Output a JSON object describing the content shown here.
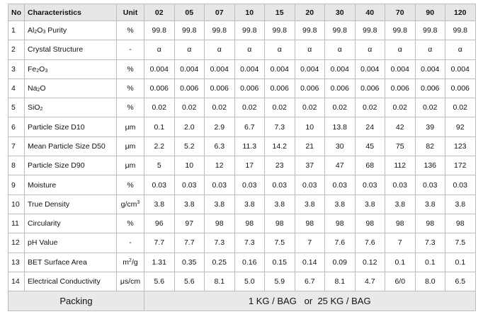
{
  "table": {
    "headers": {
      "no": "No",
      "characteristics": "Characteristics",
      "unit": "Unit",
      "grades": [
        "02",
        "05",
        "07",
        "10",
        "15",
        "20",
        "30",
        "40",
        "70",
        "90",
        "120"
      ]
    },
    "rows": [
      {
        "no": "1",
        "name_main": "Al",
        "name_sub1": "2",
        "name_mid": "O",
        "name_sub2": "3",
        "name_tail": " Purity",
        "unit": "%",
        "values": [
          "99.8",
          "99.8",
          "99.8",
          "99.8",
          "99.8",
          "99.8",
          "99.8",
          "99.8",
          "99.8",
          "99.8",
          "99.8"
        ]
      },
      {
        "no": "2",
        "name": "Crystal Structure",
        "unit": "-",
        "values": [
          "α",
          "α",
          "α",
          "α",
          "α",
          "α",
          "α",
          "α",
          "α",
          "α",
          "α"
        ]
      },
      {
        "no": "3",
        "name_main": "Fe",
        "name_sub1": "2",
        "name_mid": "O",
        "name_sub2": "3",
        "name_tail": "",
        "unit": "%",
        "values": [
          "0.004",
          "0.004",
          "0.004",
          "0.004",
          "0.004",
          "0.004",
          "0.004",
          "0.004",
          "0.004",
          "0.004",
          "0.004"
        ]
      },
      {
        "no": "4",
        "name_main": "Na",
        "name_sub1": "2",
        "name_mid": "O",
        "name_sub2": "",
        "name_tail": "",
        "unit": "%",
        "values": [
          "0.006",
          "0.006",
          "0.006",
          "0.006",
          "0.006",
          "0.006",
          "0.006",
          "0.006",
          "0.006",
          "0.006",
          "0.006"
        ]
      },
      {
        "no": "5",
        "name_main": "SiO",
        "name_sub1": "2",
        "name_mid": "",
        "name_sub2": "",
        "name_tail": "",
        "unit": "%",
        "values": [
          "0.02",
          "0.02",
          "0.02",
          "0.02",
          "0.02",
          "0.02",
          "0.02",
          "0.02",
          "0.02",
          "0.02",
          "0.02"
        ]
      },
      {
        "no": "6",
        "name": "Particle Size D10",
        "unit": "μm",
        "values": [
          "0.1",
          "2.0",
          "2.9",
          "6.7",
          "7.3",
          "10",
          "13.8",
          "24",
          "42",
          "39",
          "92"
        ]
      },
      {
        "no": "7",
        "name": "Mean Particle Size D50",
        "unit": "μm",
        "values": [
          "2.2",
          "5.2",
          "6.3",
          "11.3",
          "14.2",
          "21",
          "30",
          "45",
          "75",
          "82",
          "123"
        ]
      },
      {
        "no": "8",
        "name": "Particle Size D90",
        "unit": "μm",
        "values": [
          "5",
          "10",
          "12",
          "17",
          "23",
          "37",
          "47",
          "68",
          "112",
          "136",
          "172"
        ]
      },
      {
        "no": "9",
        "name": "Moisture",
        "unit": "%",
        "values": [
          "0.03",
          "0.03",
          "0.03",
          "0.03",
          "0.03",
          "0.03",
          "0.03",
          "0.03",
          "0.03",
          "0.03",
          "0.03"
        ]
      },
      {
        "no": "10",
        "name": "True Density",
        "unit_main": "g/cm",
        "unit_sup": "3",
        "values": [
          "3.8",
          "3.8",
          "3.8",
          "3.8",
          "3.8",
          "3.8",
          "3.8",
          "3.8",
          "3.8",
          "3.8",
          "3.8"
        ]
      },
      {
        "no": "11",
        "name": "Circularity",
        "unit": "%",
        "values": [
          "96",
          "97",
          "98",
          "98",
          "98",
          "98",
          "98",
          "98",
          "98",
          "98",
          "98"
        ]
      },
      {
        "no": "12",
        "name": "pH Value",
        "unit": "-",
        "values": [
          "7.7",
          "7.7",
          "7.3",
          "7.3",
          "7.5",
          "7",
          "7.6",
          "7.6",
          "7",
          "7.3",
          "7.5"
        ]
      },
      {
        "no": "13",
        "name": "BET Surface Area",
        "unit_main": "m",
        "unit_sup": "2",
        "unit_tail": "/g",
        "values": [
          "1.31",
          "0.35",
          "0.25",
          "0.16",
          "0.15",
          "0.14",
          "0.09",
          "0.12",
          "0.1",
          "0.1",
          "0.1"
        ]
      },
      {
        "no": "14",
        "name": "Electrical Conductivity",
        "unit": "μs/cm",
        "values": [
          "5.6",
          "5.6",
          "8.1",
          "5.0",
          "5.9",
          "6.7",
          "8.1",
          "4.7",
          "6/0",
          "8.0",
          "6.5"
        ]
      }
    ],
    "packing": {
      "label": "Packing",
      "value": "1 KG / BAG   or  25 KG / BAG"
    }
  }
}
